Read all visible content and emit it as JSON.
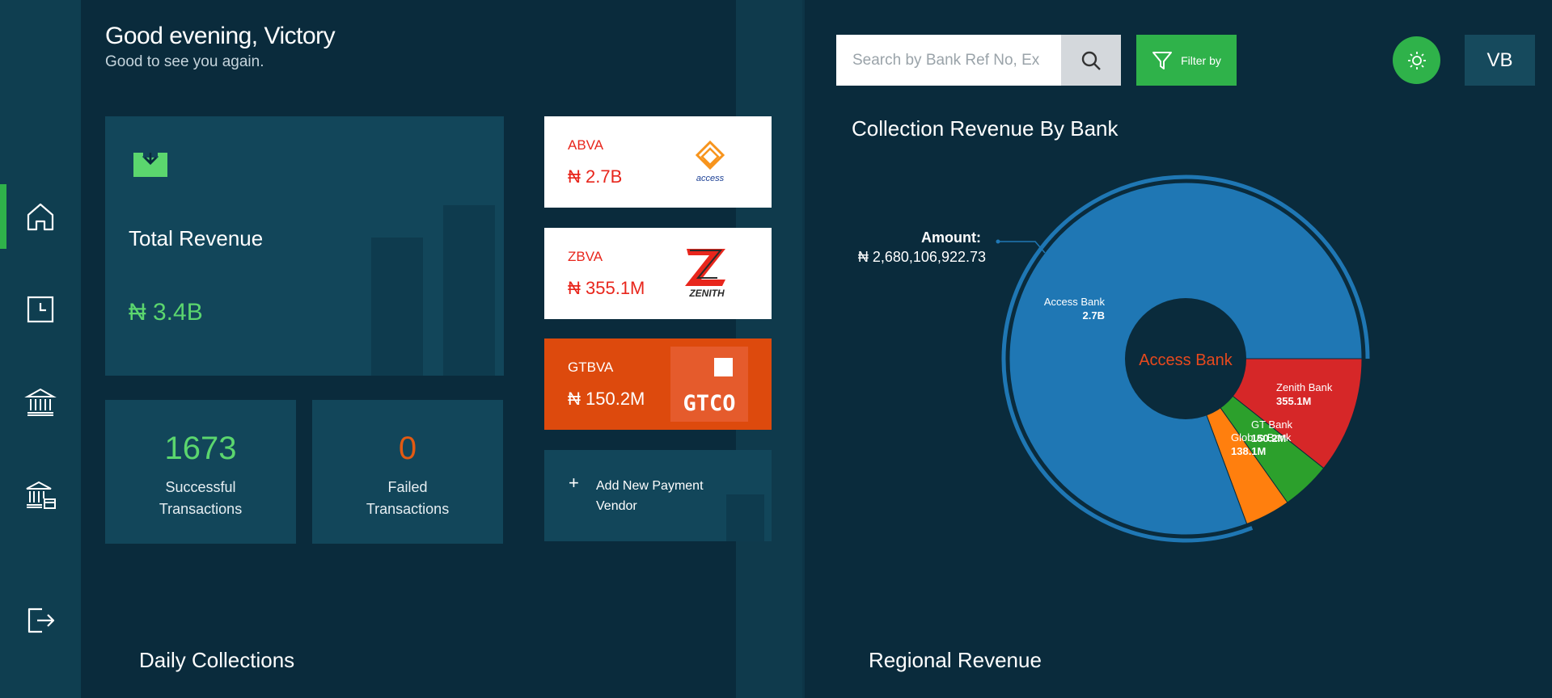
{
  "colors": {
    "bg": "#0a2b3c",
    "panel": "#12465a",
    "accent": "#2fb24a",
    "success": "#5bd66e",
    "failed": "#e25a12"
  },
  "sidebar": {
    "items": [
      {
        "name": "home",
        "icon": "home-icon",
        "active": true
      },
      {
        "name": "history",
        "icon": "clock-icon",
        "active": false
      },
      {
        "name": "banks",
        "icon": "bank-icon",
        "active": false
      },
      {
        "name": "bank-settings",
        "icon": "bank-card-icon",
        "active": false
      },
      {
        "name": "logout",
        "icon": "logout-icon",
        "active": false
      }
    ]
  },
  "header": {
    "greeting": "Good evening, Victory",
    "subtitle": "Good to see you again.",
    "search_placeholder": "Search by Bank Ref No, Ex",
    "filter_label": "Filter by",
    "avatar_initials": "VB"
  },
  "summary": {
    "total_revenue_label": "Total Revenue",
    "total_revenue_value": "₦ 3.4B",
    "successful_count": "1673",
    "successful_label_1": "Successful",
    "successful_label_2": "Transactions",
    "failed_count": "0",
    "failed_label_1": "Failed",
    "failed_label_2": "Transactions"
  },
  "vendors": [
    {
      "code": "ABVA",
      "amount": "₦ 2.7B",
      "logo_text": "access",
      "bg": "#ffffff",
      "text_color": "#e8261c"
    },
    {
      "code": "ZBVA",
      "amount": "₦ 355.1M",
      "logo_text": "ZENITH",
      "bg": "#ffffff",
      "text_color": "#e8261c"
    },
    {
      "code": "GTBVA",
      "amount": "₦ 150.2M",
      "logo_text": "GTCO",
      "bg": "#dd4a0d",
      "text_color": "#ffffff"
    }
  ],
  "add_vendor": {
    "plus": "+",
    "label": "Add New Payment Vendor"
  },
  "chart_data": {
    "type": "pie",
    "title": "Collection Revenue By Bank",
    "center_label": "Access Bank",
    "tooltip": {
      "label": "Amount:",
      "value": "₦ 2,680,106,922.73"
    },
    "slices": [
      {
        "name": "Access Bank",
        "label": "2.7B",
        "value": 2680106922.73,
        "color": "#1f77b4"
      },
      {
        "name": "Zenith Bank",
        "label": "355.1M",
        "value": 355100000,
        "color": "#d62728"
      },
      {
        "name": "GT Bank",
        "label": "150.2M",
        "value": 150200000,
        "color": "#2ca02c"
      },
      {
        "name": "Globus Bank",
        "label": "138.1M",
        "value": 138100000,
        "color": "#ff7f0e"
      }
    ]
  },
  "sections": {
    "daily": "Daily Collections",
    "regional": "Regional Revenue"
  }
}
